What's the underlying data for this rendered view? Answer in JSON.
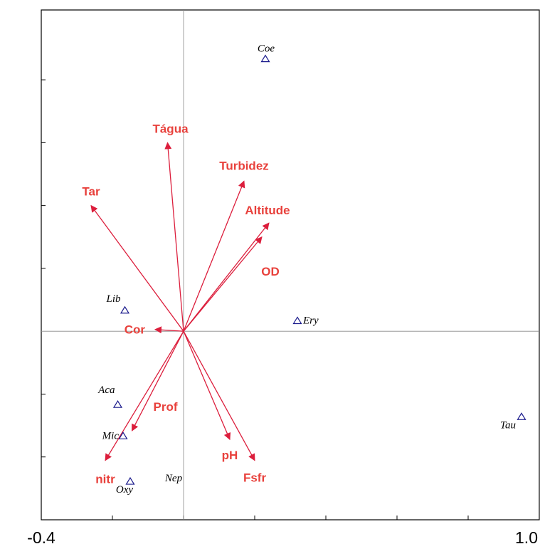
{
  "chart_data": {
    "type": "scatter",
    "subtype": "ordination-biplot",
    "title": "",
    "xlabel": "",
    "ylabel": "",
    "xlim": [
      -0.4,
      1.0
    ],
    "ylim": [
      -0.54,
      0.92
    ],
    "x_tick_labels": [
      {
        "value": -0.4,
        "label": "-0.4"
      },
      {
        "value": 1.0,
        "label": "1.0"
      }
    ],
    "x_ticks": [
      -0.4,
      -0.2,
      0.0,
      0.2,
      0.4,
      0.6,
      0.8,
      1.0
    ],
    "y_ticks": [
      -0.36,
      -0.18,
      0.18,
      0.36,
      0.54,
      0.72
    ],
    "origin_lines": true,
    "vectors": [
      {
        "name": "Tar",
        "x": -0.26,
        "y": 0.36
      },
      {
        "name": "Tágua",
        "x": -0.045,
        "y": 0.54
      },
      {
        "name": "Turbidez",
        "x": 0.17,
        "y": 0.43
      },
      {
        "name": "Altitude",
        "x": 0.24,
        "y": 0.31
      },
      {
        "name": "OD",
        "x": 0.22,
        "y": 0.27
      },
      {
        "name": "Cor",
        "x": -0.08,
        "y": 0.005
      },
      {
        "name": "Prof",
        "x": -0.145,
        "y": -0.285
      },
      {
        "name": "nitr",
        "x": -0.22,
        "y": -0.37
      },
      {
        "name": "pH",
        "x": 0.13,
        "y": -0.31
      },
      {
        "name": "Fsfr",
        "x": 0.2,
        "y": -0.37
      }
    ],
    "species": [
      {
        "name": "Coe",
        "x": 0.23,
        "y": 0.78
      },
      {
        "name": "Lib",
        "x": -0.165,
        "y": 0.06
      },
      {
        "name": "Ery",
        "x": 0.32,
        "y": 0.03
      },
      {
        "name": "Aca",
        "x": -0.185,
        "y": -0.21
      },
      {
        "name": "Mic",
        "x": -0.17,
        "y": -0.3
      },
      {
        "name": "Oxy",
        "x": -0.15,
        "y": -0.43
      },
      {
        "name": "Nep",
        "x": 0.0,
        "y": -0.43
      },
      {
        "name": "Tau",
        "x": 0.95,
        "y": -0.245
      }
    ],
    "colors": {
      "vector": "#dc1e3c",
      "vector_label": "#e8413c",
      "species_marker": "#1a1a8c",
      "axis": "#000000",
      "origin_line": "#888888"
    }
  }
}
